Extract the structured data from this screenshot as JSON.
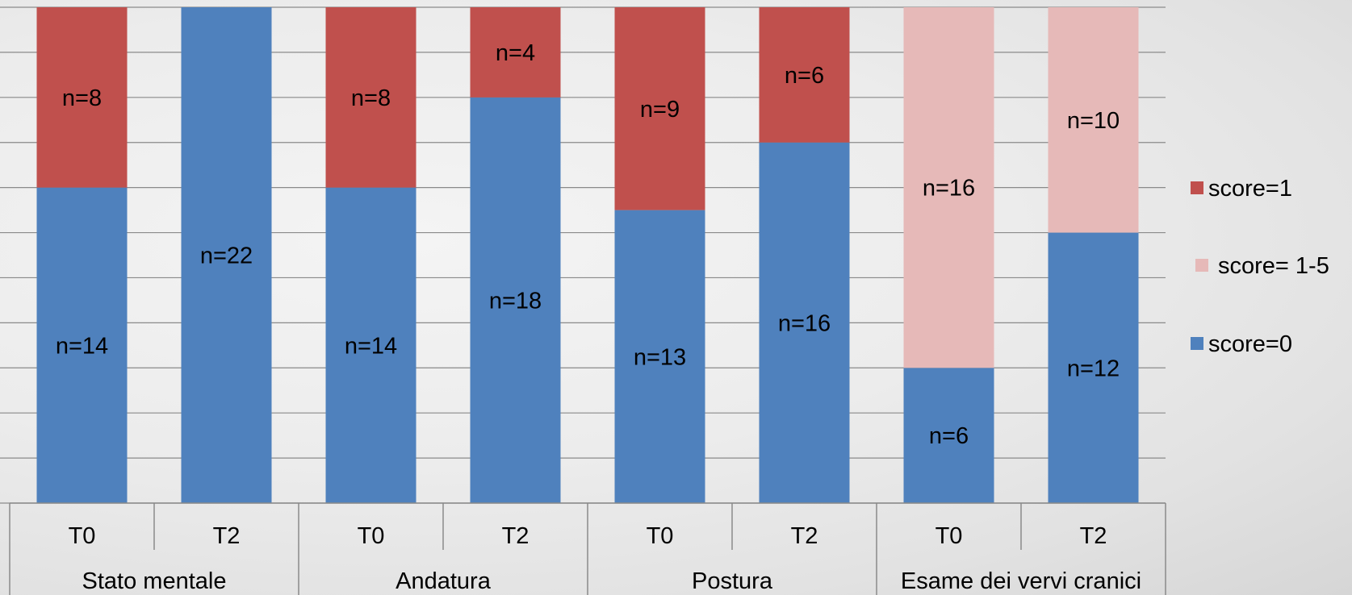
{
  "chart_data": {
    "type": "bar",
    "stacked": true,
    "groups": [
      "Stato mentale",
      "Andatura",
      "Postura",
      "Esame dei vervi cranici"
    ],
    "categories": [
      "T0",
      "T2",
      "T0",
      "T2",
      "T0",
      "T2",
      "T0",
      "T2"
    ],
    "series": [
      {
        "name": "score=0",
        "color": "#4f81bd",
        "values": [
          14,
          22,
          14,
          18,
          13,
          16,
          6,
          12
        ]
      },
      {
        "name": "score= 1-5",
        "color": "#e6b9b8",
        "values": [
          0,
          0,
          0,
          0,
          0,
          0,
          16,
          10
        ]
      },
      {
        "name": "score=1",
        "color": "#c0504d",
        "values": [
          8,
          0,
          8,
          4,
          9,
          6,
          0,
          0
        ]
      }
    ],
    "data_labels": [
      [
        "n=14",
        "n=22",
        "n=14",
        "n=18",
        "n=13",
        "n=16",
        "n=6",
        "n=12"
      ],
      [
        "",
        "",
        "",
        "",
        "",
        "",
        "n=16",
        "n=10"
      ],
      [
        "n=8",
        "",
        "n=8",
        "n=4",
        "n=9",
        "n=6",
        "",
        ""
      ]
    ],
    "legend": [
      {
        "label": "score=1",
        "color": "#c0504d"
      },
      {
        "label": "score= 1-5",
        "color": "#e6b9b8"
      },
      {
        "label": "score=0",
        "color": "#4f81bd"
      }
    ],
    "legend_position": "right",
    "ylim": [
      0,
      22
    ],
    "grid": true
  }
}
